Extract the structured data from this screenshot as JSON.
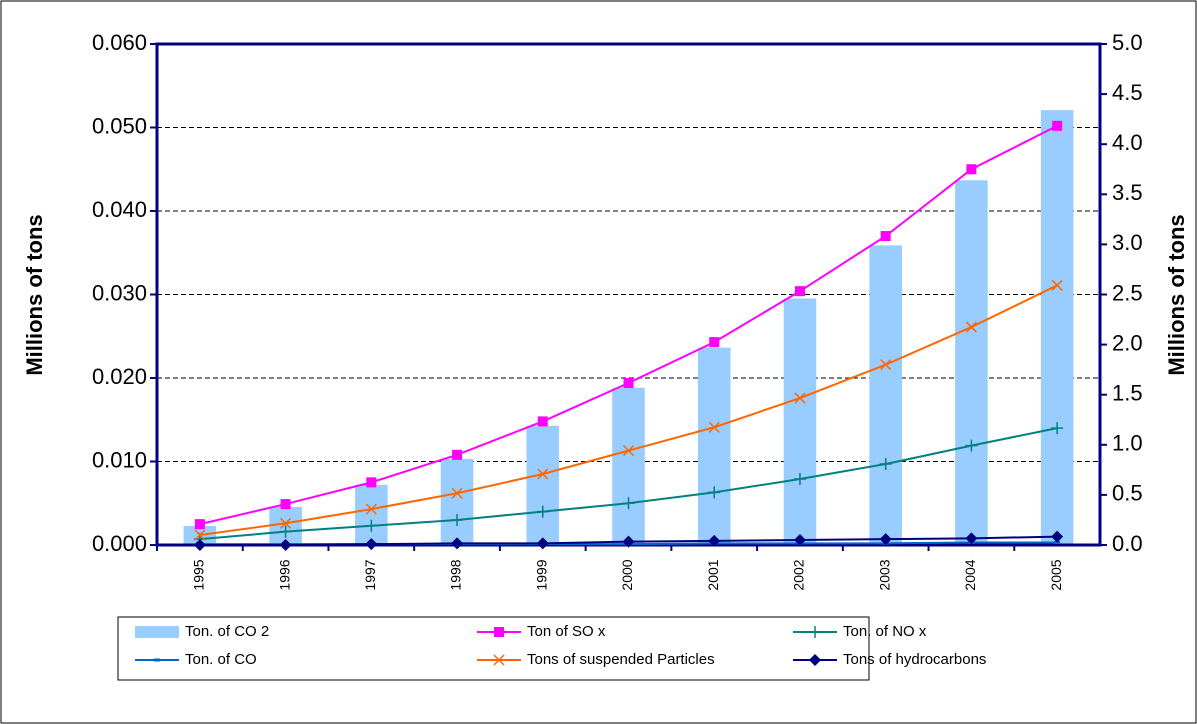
{
  "chart_data": {
    "type": "combo",
    "categories": [
      "1995",
      "1996",
      "1997",
      "1998",
      "1999",
      "2000",
      "2001",
      "2002",
      "2003",
      "2004",
      "2005"
    ],
    "y_label": "Millions of tons",
    "y2_label": "Millions of tons",
    "ylim": [
      0,
      0.06
    ],
    "yticks": [
      {
        "value": 0,
        "label": "0.000"
      },
      {
        "value": 0.01,
        "label": "0.010"
      },
      {
        "value": 0.02,
        "label": "0.020"
      },
      {
        "value": 0.03,
        "label": "0.030"
      },
      {
        "value": 0.04,
        "label": "0.040"
      },
      {
        "value": 0.05,
        "label": "0.050"
      },
      {
        "value": 0.06,
        "label": "0.060"
      }
    ],
    "y2lim": [
      0,
      5
    ],
    "y2ticks": [
      {
        "value": 0,
        "label": "0.0"
      },
      0.5,
      {
        "value": 1,
        "label": "1.0"
      },
      1.5,
      {
        "value": 2,
        "label": "2.0"
      },
      2.5,
      {
        "value": 3,
        "label": "3.0"
      },
      3.5,
      {
        "value": 4,
        "label": "4.0"
      },
      4.5,
      {
        "value": 5,
        "label": "5.0"
      }
    ],
    "grid": true,
    "series": [
      {
        "name": "Ton. of CO 2",
        "type": "bar",
        "axis": "y2",
        "color": "#99ccff",
        "values": [
          0.19,
          0.38,
          0.6,
          0.86,
          1.19,
          1.57,
          1.97,
          2.46,
          2.99,
          3.64,
          4.34
        ]
      },
      {
        "name": "Ton of SO x",
        "type": "line",
        "marker": "square",
        "color": "#ff00ff",
        "values": [
          0.0025,
          0.0049,
          0.0075,
          0.0108,
          0.0148,
          0.0194,
          0.0243,
          0.0304,
          0.037,
          0.045,
          0.0502
        ]
      },
      {
        "name": "Ton. of NO x",
        "type": "line",
        "marker": "plus",
        "color": "#008080",
        "values": [
          0.0007,
          0.0016,
          0.0023,
          0.003,
          0.004,
          0.005,
          0.0063,
          0.0079,
          0.0097,
          0.0119,
          0.014
        ]
      },
      {
        "name": "Ton. of CO",
        "type": "line",
        "marker": "dash",
        "color": "#0066cc",
        "values": [
          0.0001,
          0.0001,
          0.0001,
          0.0001,
          0.0001,
          0.0001,
          0.0002,
          0.0002,
          0.0002,
          0.0003,
          0.0003
        ]
      },
      {
        "name": "Tons of suspended Particles",
        "type": "line",
        "marker": "x",
        "color": "#ff6600",
        "values": [
          0.0012,
          0.0026,
          0.0043,
          0.0062,
          0.0085,
          0.0113,
          0.0141,
          0.0176,
          0.0216,
          0.0261,
          0.0311
        ]
      },
      {
        "name": "Tons of hydrocarbons",
        "type": "line",
        "marker": "diamond",
        "color": "#000080",
        "values": [
          0,
          0,
          0.0001,
          0.0002,
          0.0002,
          0.0004,
          0.0005,
          0.0006,
          0.0007,
          0.0008,
          0.001
        ]
      }
    ]
  }
}
